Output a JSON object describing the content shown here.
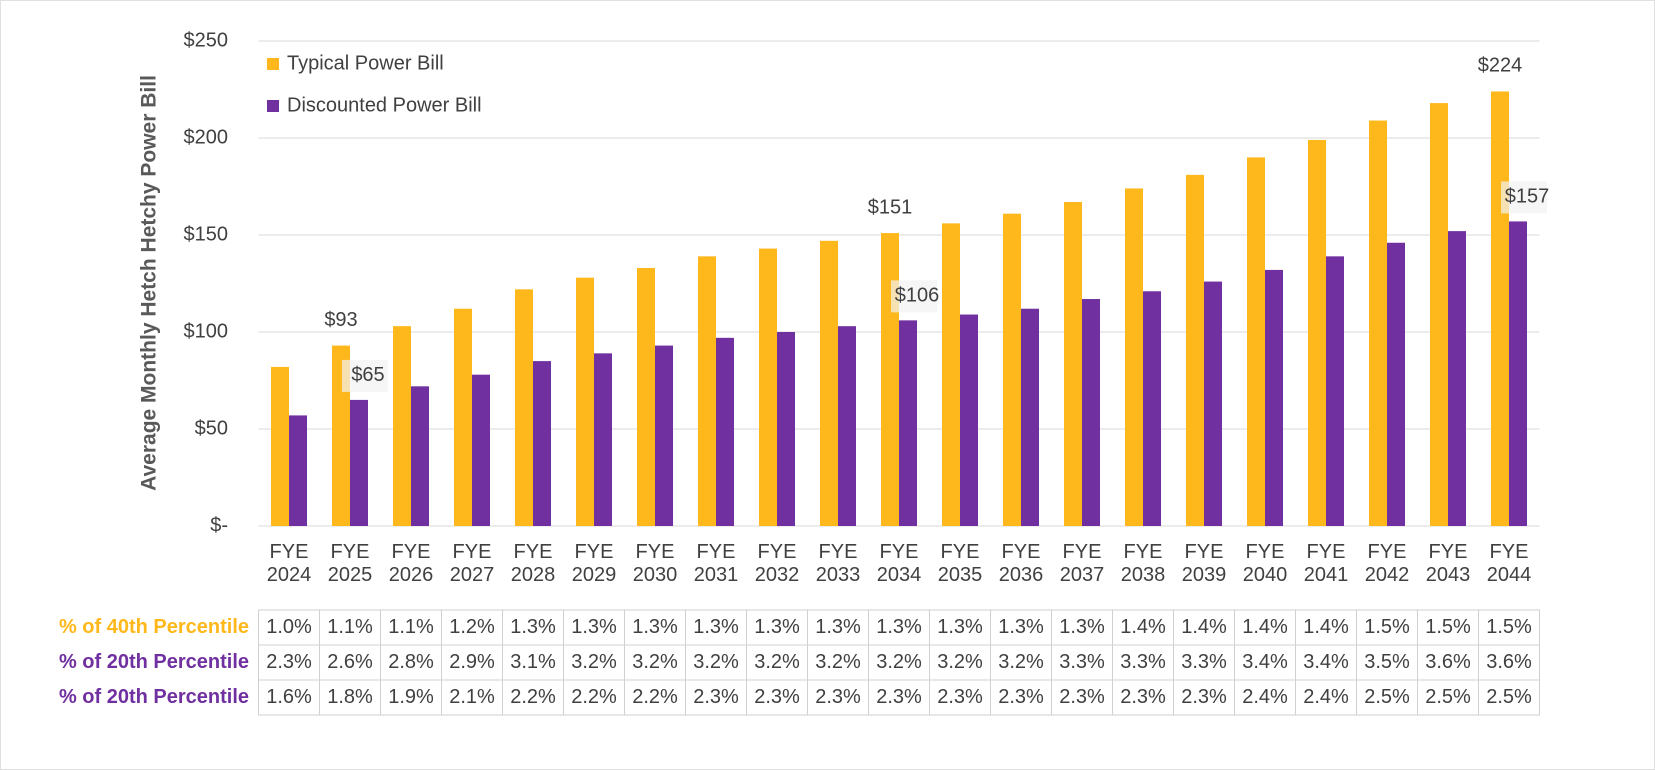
{
  "chart_data": {
    "type": "bar",
    "y_label": "Average Monthly Hetch Hetchy Power Bill",
    "categories": [
      "FYE 2024",
      "FYE 2025",
      "FYE 2026",
      "FYE 2027",
      "FYE 2028",
      "FYE 2029",
      "FYE 2030",
      "FYE 2031",
      "FYE 2032",
      "FYE 2033",
      "FYE 2034",
      "FYE 2035",
      "FYE 2036",
      "FYE 2037",
      "FYE 2038",
      "FYE 2039",
      "FYE 2040",
      "FYE 2041",
      "FYE 2042",
      "FYE 2043",
      "FYE 2044"
    ],
    "series": [
      {
        "name": "Typical Power Bill",
        "color": "#FFB81C",
        "values": [
          82,
          93,
          103,
          112,
          122,
          128,
          133,
          139,
          143,
          147,
          151,
          156,
          161,
          167,
          174,
          181,
          190,
          199,
          209,
          218,
          224
        ],
        "value_labels": [
          null,
          "$93",
          null,
          null,
          null,
          null,
          null,
          null,
          null,
          null,
          "$151",
          null,
          null,
          null,
          null,
          null,
          null,
          null,
          null,
          null,
          "$224"
        ]
      },
      {
        "name": "Discounted Power Bill",
        "color": "#7030A0",
        "values": [
          57,
          65,
          72,
          78,
          85,
          89,
          93,
          97,
          100,
          103,
          106,
          109,
          112,
          117,
          121,
          126,
          132,
          139,
          146,
          152,
          157
        ],
        "value_labels": [
          null,
          "$65",
          null,
          null,
          null,
          null,
          null,
          null,
          null,
          null,
          "$106",
          null,
          null,
          null,
          null,
          null,
          null,
          null,
          null,
          null,
          "$157"
        ]
      }
    ],
    "ylim": [
      0,
      250
    ],
    "yticks": [
      {
        "value": 0,
        "label": "$-"
      },
      {
        "value": 50,
        "label": "$50"
      },
      {
        "value": 100,
        "label": "$100"
      },
      {
        "value": 150,
        "label": "$150"
      },
      {
        "value": 200,
        "label": "$200"
      },
      {
        "value": 250,
        "label": "$250"
      }
    ],
    "grid": true,
    "legend": "upper left"
  },
  "table": {
    "rows": [
      {
        "label": "% of 40th Percentile",
        "color": "#FFB81C",
        "cells": [
          "1.0%",
          "1.1%",
          "1.1%",
          "1.2%",
          "1.3%",
          "1.3%",
          "1.3%",
          "1.3%",
          "1.3%",
          "1.3%",
          "1.3%",
          "1.3%",
          "1.3%",
          "1.3%",
          "1.4%",
          "1.4%",
          "1.4%",
          "1.4%",
          "1.5%",
          "1.5%",
          "1.5%"
        ]
      },
      {
        "label": "% of 20th Percentile",
        "color": "#7030A0",
        "cells": [
          "2.3%",
          "2.6%",
          "2.8%",
          "2.9%",
          "3.1%",
          "3.2%",
          "3.2%",
          "3.2%",
          "3.2%",
          "3.2%",
          "3.2%",
          "3.2%",
          "3.2%",
          "3.3%",
          "3.3%",
          "3.3%",
          "3.4%",
          "3.4%",
          "3.5%",
          "3.6%",
          "3.6%"
        ]
      },
      {
        "label": "% of 20th Percentile",
        "color": "#7030A0",
        "cells": [
          "1.6%",
          "1.8%",
          "1.9%",
          "2.1%",
          "2.2%",
          "2.2%",
          "2.2%",
          "2.3%",
          "2.3%",
          "2.3%",
          "2.3%",
          "2.3%",
          "2.3%",
          "2.3%",
          "2.3%",
          "2.3%",
          "2.4%",
          "2.4%",
          "2.5%",
          "2.5%",
          "2.5%"
        ]
      }
    ]
  }
}
